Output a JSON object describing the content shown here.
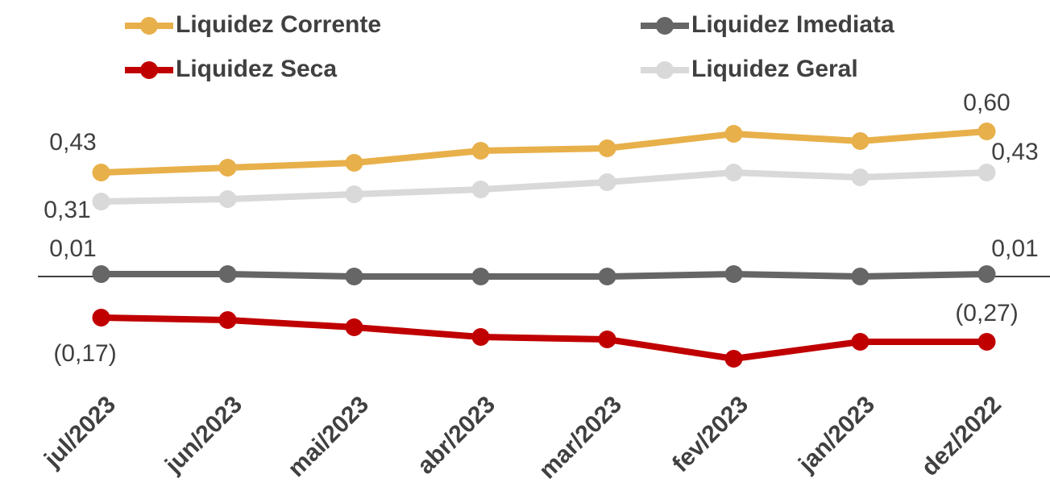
{
  "chart_data": {
    "type": "line",
    "categories": [
      "jul/2023",
      "jun/2023",
      "mai/2023",
      "abr/2023",
      "mar/2023",
      "fev/2023",
      "jan/2023",
      "dez/2022"
    ],
    "series": [
      {
        "name": "Liquidez Corrente",
        "color": "#E8B04A",
        "values": [
          0.43,
          0.45,
          0.47,
          0.52,
          0.53,
          0.59,
          0.56,
          0.6
        ],
        "value_labels": [
          "0,43",
          null,
          null,
          null,
          null,
          null,
          null,
          "0,60"
        ]
      },
      {
        "name": "Liquidez Imediata",
        "color": "#666666",
        "values": [
          0.01,
          0.01,
          0.0,
          0.0,
          0.0,
          0.01,
          0.0,
          0.01
        ],
        "value_labels": [
          "0,01",
          null,
          null,
          null,
          null,
          null,
          null,
          "0,01"
        ]
      },
      {
        "name": "Liquidez Seca",
        "color": "#C00000",
        "values": [
          -0.17,
          -0.18,
          -0.21,
          -0.25,
          -0.26,
          -0.34,
          -0.27,
          -0.27
        ],
        "value_labels": [
          "(0,17)",
          null,
          null,
          null,
          null,
          null,
          null,
          "(0,27)"
        ]
      },
      {
        "name": "Liquidez Geral",
        "color": "#D9D9D9",
        "values": [
          0.31,
          0.32,
          0.34,
          0.36,
          0.39,
          0.43,
          0.41,
          0.43
        ],
        "value_labels": [
          "0,31",
          null,
          null,
          null,
          null,
          null,
          null,
          "0,43"
        ]
      }
    ],
    "ylim": [
      -0.35,
      0.65
    ],
    "legend": "top"
  }
}
